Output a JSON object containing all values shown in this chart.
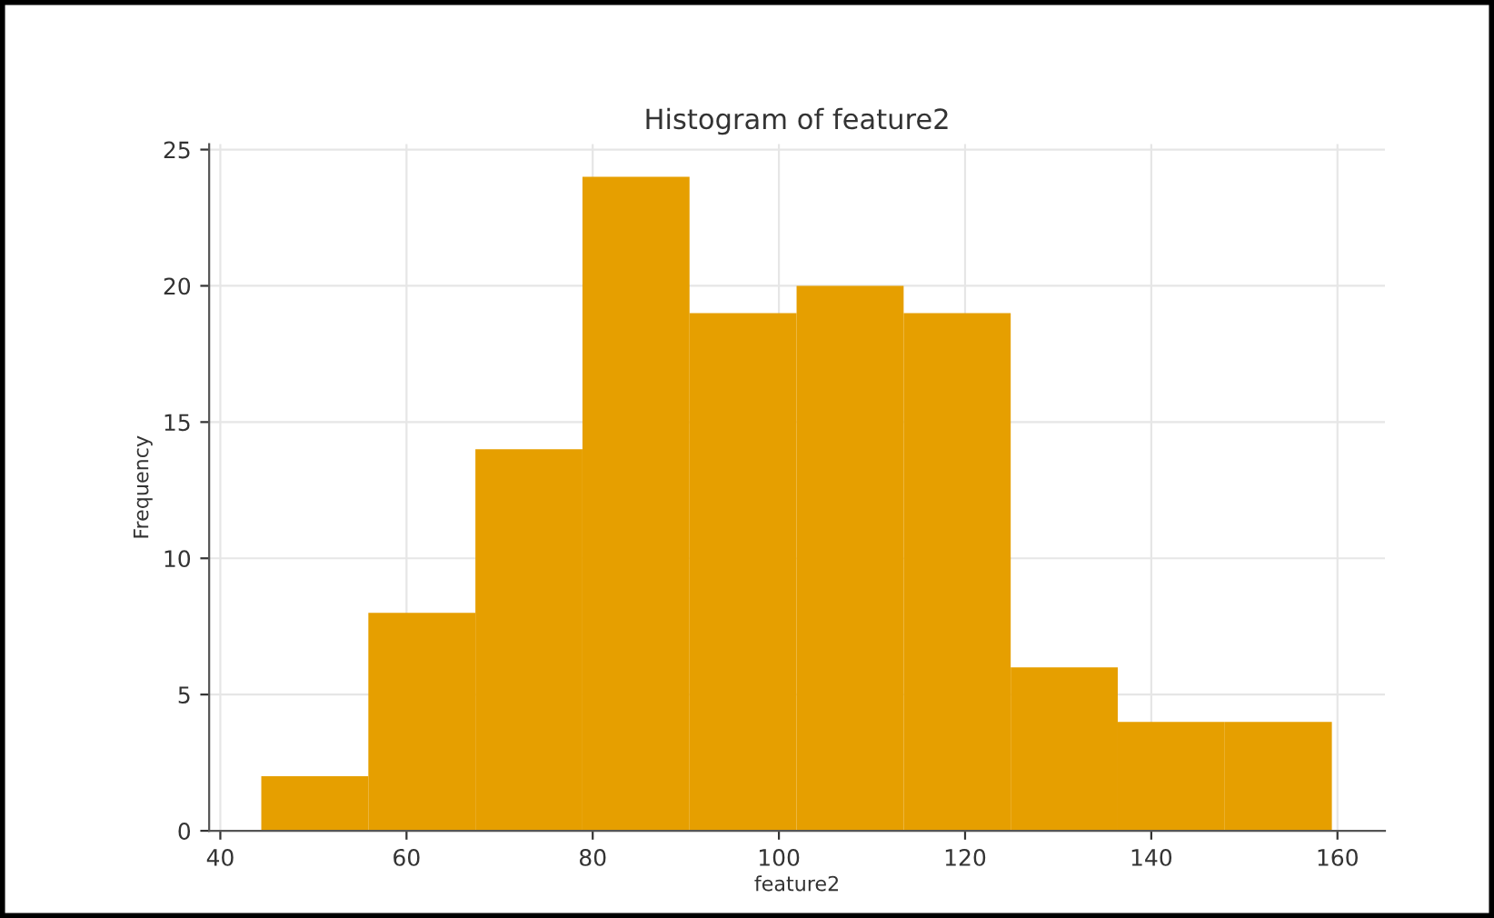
{
  "chart_data": {
    "type": "histogram",
    "title": "Histogram of feature2",
    "xlabel": "feature2",
    "ylabel": "Frequency",
    "bins": [
      44.4,
      55.9,
      67.4,
      78.9,
      90.4,
      101.9,
      113.4,
      124.9,
      136.4,
      147.9,
      159.4
    ],
    "values": [
      2,
      8,
      14,
      24,
      19,
      20,
      19,
      6,
      4,
      4
    ],
    "color": "#e69f00",
    "xlim": [
      38.8,
      165.1
    ],
    "ylim": [
      0,
      25.2
    ],
    "xticks": [
      40,
      60,
      80,
      100,
      120,
      140,
      160
    ],
    "yticks": [
      0,
      5,
      10,
      15,
      20,
      25
    ],
    "grid": true
  }
}
